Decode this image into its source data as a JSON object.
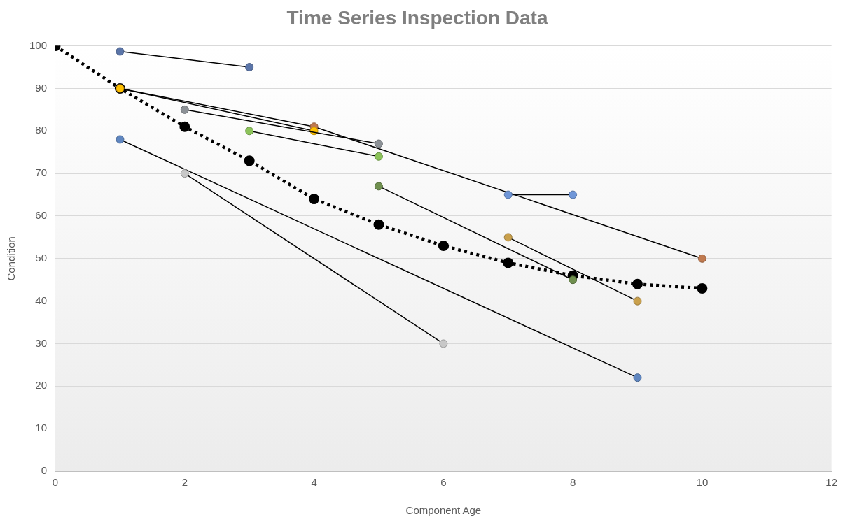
{
  "chart_data": {
    "type": "line",
    "title": "Time Series Inspection Data",
    "xlabel": "Component Age",
    "ylabel": "Condition",
    "xlim": [
      0,
      12
    ],
    "xticks": [
      0,
      2,
      4,
      6,
      8,
      10,
      12
    ],
    "ylim": [
      0,
      100
    ],
    "yticks": [
      0,
      10,
      20,
      30,
      40,
      50,
      60,
      70,
      80,
      90,
      100
    ],
    "grid": "y",
    "legend": false,
    "marker": "circle",
    "line_style": "solid",
    "series": [
      {
        "color": "#5b75a8",
        "x": [
          1,
          3
        ],
        "values": [
          98.7,
          95
        ]
      },
      {
        "color": "#c07a50",
        "x": [
          1,
          4,
          10
        ],
        "values": [
          90,
          81,
          50
        ]
      },
      {
        "color": "#ffc000",
        "x": [
          1,
          4
        ],
        "values": [
          90,
          80
        ]
      },
      {
        "color": "#8c9196",
        "x": [
          2,
          5
        ],
        "values": [
          85,
          77
        ]
      },
      {
        "color": "#8cc35a",
        "x": [
          3,
          5
        ],
        "values": [
          80,
          74
        ]
      },
      {
        "color": "#6f8f4e",
        "x": [
          5,
          8
        ],
        "values": [
          67,
          45
        ]
      },
      {
        "color": "#6f96d8",
        "x": [
          7,
          8
        ],
        "values": [
          65,
          65
        ]
      },
      {
        "color": "#c9a04c",
        "x": [
          7,
          9
        ],
        "values": [
          55,
          40
        ]
      },
      {
        "color": "#5f86c0",
        "x": [
          1,
          9
        ],
        "values": [
          78,
          22
        ]
      },
      {
        "color": "#c8c8c8",
        "x": [
          2,
          6
        ],
        "values": [
          70,
          30
        ]
      },
      {
        "color": "#000000",
        "line_style": "dotted",
        "x": [
          0,
          1,
          2,
          3,
          4,
          5,
          6,
          7,
          8,
          9,
          10
        ],
        "values": [
          100,
          90,
          81,
          73,
          64,
          58,
          53,
          49,
          46,
          44,
          43
        ]
      }
    ]
  }
}
